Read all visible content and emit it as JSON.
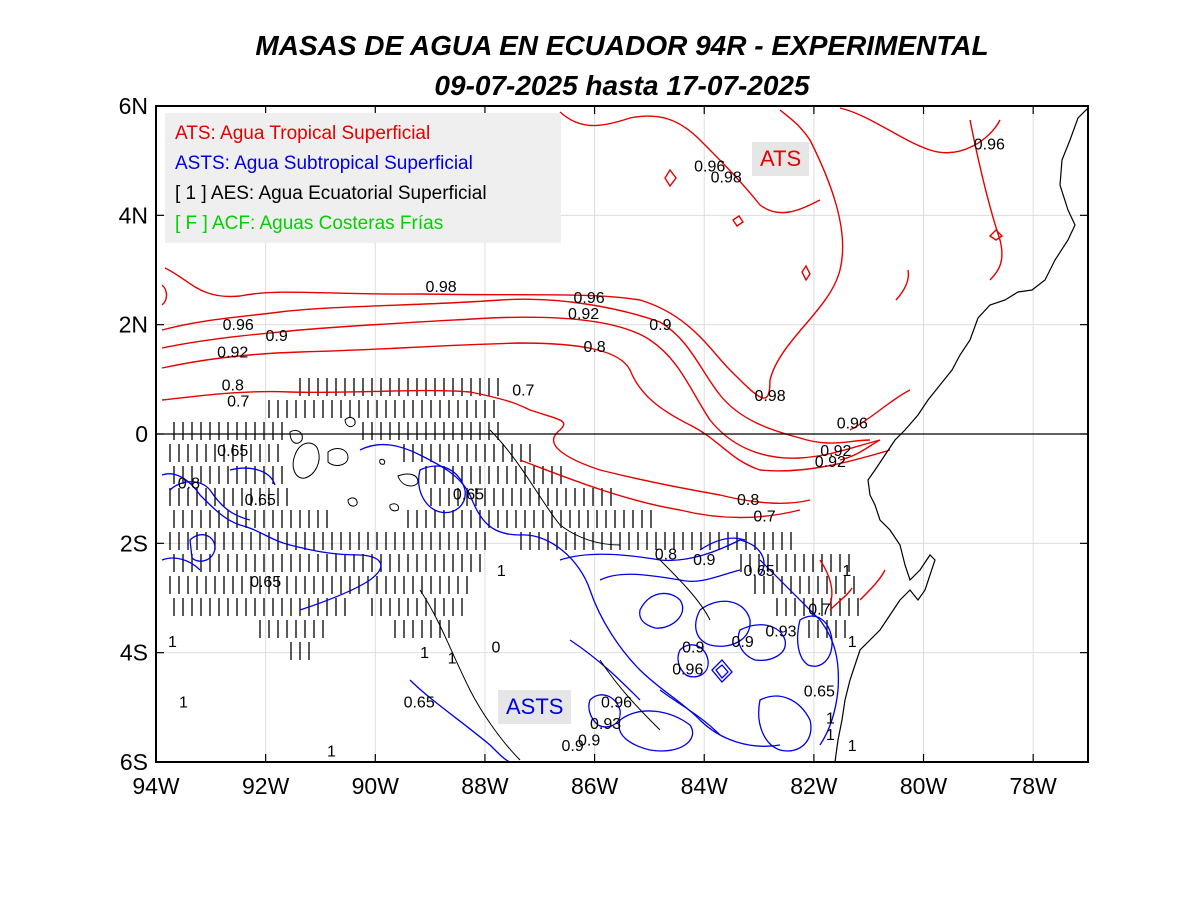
{
  "title": {
    "line1": "MASAS DE AGUA EN ECUADOR 94R - EXPERIMENTAL",
    "line2": "09-07-2025 hasta 17-07-2025"
  },
  "axes": {
    "x_ticks": [
      "94W",
      "92W",
      "90W",
      "88W",
      "86W",
      "84W",
      "82W",
      "80W",
      "78W"
    ],
    "y_ticks": [
      "6N",
      "4N",
      "2N",
      "0",
      "2S",
      "4S",
      "6S"
    ],
    "lon_range": [
      -94,
      -77
    ],
    "lat_range": [
      -6,
      6
    ]
  },
  "legend": {
    "items": [
      {
        "text": "ATS: Agua Tropical Superficial",
        "color": "#e60000"
      },
      {
        "text": "ASTS: Agua Subtropical Superficial",
        "color": "#0000e6"
      },
      {
        "text": "[ 1 ] AES: Agua Ecuatorial Superficial",
        "color": "#000000"
      },
      {
        "text": "[ F ] ACF: Aguas Costeras Frías",
        "color": "#00d200"
      }
    ]
  },
  "regions": {
    "ats": {
      "label": "ATS",
      "color": "#e60000"
    },
    "asts": {
      "label": "ASTS",
      "color": "#0000e6"
    }
  },
  "contour_labels": [
    {
      "text": "0.96",
      "lon": -83.9,
      "lat": 4.8
    },
    {
      "text": "0.98",
      "lon": -83.6,
      "lat": 4.6
    },
    {
      "text": "0.96",
      "lon": -78.8,
      "lat": 5.2
    },
    {
      "text": "0.98",
      "lon": -88.8,
      "lat": 2.6
    },
    {
      "text": "0.96",
      "lon": -86.1,
      "lat": 2.4
    },
    {
      "text": "0.92",
      "lon": -86.2,
      "lat": 2.1
    },
    {
      "text": "0.9",
      "lon": -84.8,
      "lat": 1.9
    },
    {
      "text": "0.8",
      "lon": -86.0,
      "lat": 1.5
    },
    {
      "text": "0.96",
      "lon": -92.5,
      "lat": 1.9
    },
    {
      "text": "0.92",
      "lon": -92.6,
      "lat": 1.4
    },
    {
      "text": "0.9",
      "lon": -91.8,
      "lat": 1.7
    },
    {
      "text": "0.8",
      "lon": -92.6,
      "lat": 0.8
    },
    {
      "text": "0.7",
      "lon": -92.5,
      "lat": 0.5
    },
    {
      "text": "0.7",
      "lon": -87.3,
      "lat": 0.7
    },
    {
      "text": "0.98",
      "lon": -82.8,
      "lat": 0.6
    },
    {
      "text": "0.96",
      "lon": -81.3,
      "lat": 0.1
    },
    {
      "text": "0.92",
      "lon": -81.6,
      "lat": -0.4
    },
    {
      "text": "0.92",
      "lon": -81.7,
      "lat": -0.6
    },
    {
      "text": "0.8",
      "lon": -83.2,
      "lat": -1.3
    },
    {
      "text": "0.7",
      "lon": -82.9,
      "lat": -1.6
    },
    {
      "text": "0.65",
      "lon": -92.6,
      "lat": -0.4
    },
    {
      "text": "0.8",
      "lon": -93.4,
      "lat": -1.0
    },
    {
      "text": "0.65",
      "lon": -92.1,
      "lat": -1.3
    },
    {
      "text": "0.65",
      "lon": -88.3,
      "lat": -1.2
    },
    {
      "text": "0.65",
      "lon": -92.0,
      "lat": -2.8
    },
    {
      "text": "0.65",
      "lon": -89.2,
      "lat": -5.0
    },
    {
      "text": "0.8",
      "lon": -84.7,
      "lat": -2.3
    },
    {
      "text": "0.9",
      "lon": -84.0,
      "lat": -2.4
    },
    {
      "text": "0.65",
      "lon": -83.0,
      "lat": -2.6
    },
    {
      "text": "0.9",
      "lon": -84.2,
      "lat": -4.0
    },
    {
      "text": "0.96",
      "lon": -84.3,
      "lat": -4.4
    },
    {
      "text": "0.9",
      "lon": -83.3,
      "lat": -3.9
    },
    {
      "text": "0.93",
      "lon": -82.6,
      "lat": -3.7
    },
    {
      "text": "0.7",
      "lon": -81.9,
      "lat": -3.3
    },
    {
      "text": "0.96",
      "lon": -85.6,
      "lat": -5.0
    },
    {
      "text": "0.93",
      "lon": -85.8,
      "lat": -5.4
    },
    {
      "text": "0.9",
      "lon": -86.1,
      "lat": -5.7
    },
    {
      "text": "0.65",
      "lon": -81.9,
      "lat": -4.8
    },
    {
      "text": "0.9",
      "lon": -86.4,
      "lat": -5.8
    },
    {
      "text": "1",
      "lon": -93.7,
      "lat": -3.9
    },
    {
      "text": "1",
      "lon": -87.7,
      "lat": -2.6
    },
    {
      "text": "1",
      "lon": -88.6,
      "lat": -4.2
    },
    {
      "text": "1",
      "lon": -89.1,
      "lat": -4.1
    },
    {
      "text": "1",
      "lon": -93.5,
      "lat": -5.0
    },
    {
      "text": "1",
      "lon": -90.8,
      "lat": -5.9
    },
    {
      "text": "1",
      "lon": -81.4,
      "lat": -2.6
    },
    {
      "text": "1",
      "lon": -81.3,
      "lat": -3.9
    },
    {
      "text": "1",
      "lon": -81.7,
      "lat": -5.3
    },
    {
      "text": "1",
      "lon": -81.7,
      "lat": -5.6
    },
    {
      "text": "1",
      "lon": -81.3,
      "lat": -5.8
    },
    {
      "text": "0",
      "lon": -87.8,
      "lat": -4.0
    }
  ]
}
